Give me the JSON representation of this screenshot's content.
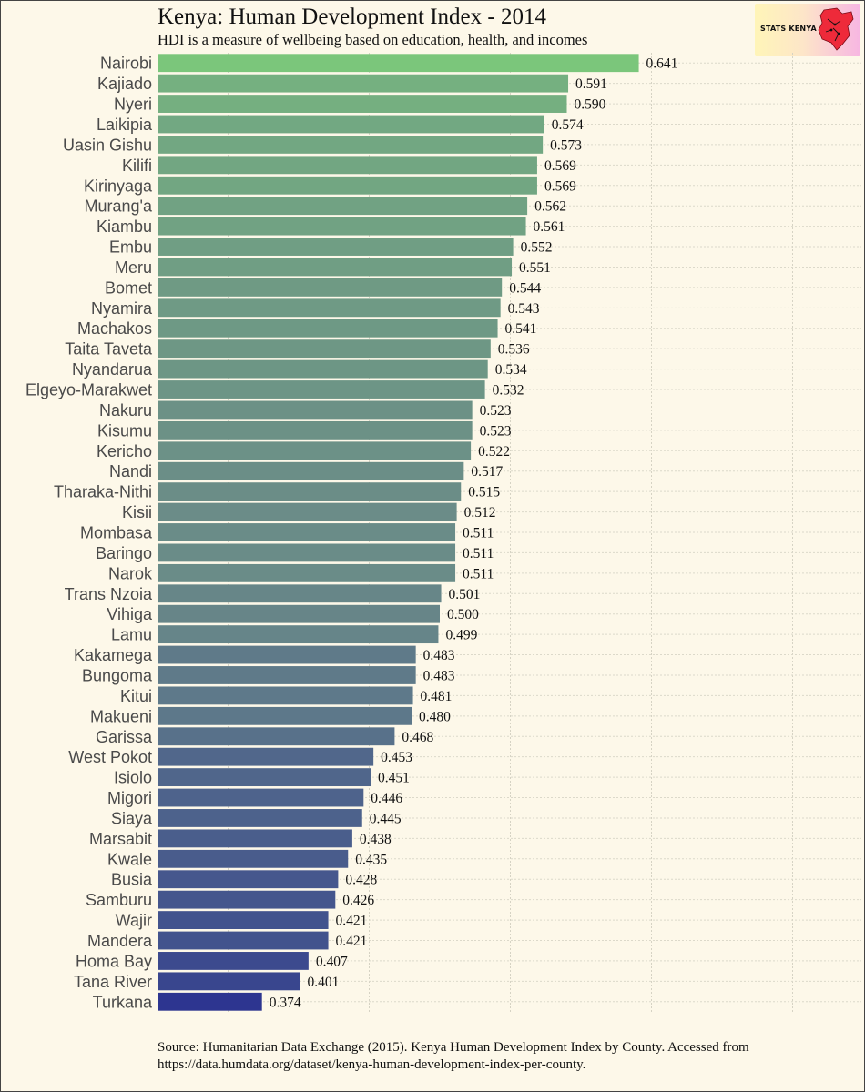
{
  "chart_data": {
    "type": "bar",
    "orientation": "horizontal",
    "title": "Kenya: Human Development Index - 2014",
    "subtitle": "HDI is a measure of wellbeing based on education, health, and incomes",
    "xlabel": "",
    "ylabel": "",
    "xlim": [
      0,
      0.75
    ],
    "grid": true,
    "colors": {
      "high": "#7bc67b",
      "mid": "#6a8a88",
      "low": "#2d3590"
    },
    "categories": [
      "Nairobi",
      "Kajiado",
      "Nyeri",
      "Laikipia",
      "Uasin Gishu",
      "Kilifi",
      "Kirinyaga",
      "Murang'a",
      "Kiambu",
      "Embu",
      "Meru",
      "Bomet",
      "Nyamira",
      "Machakos",
      "Taita Taveta",
      "Nyandarua",
      "Elgeyo-Marakwet",
      "Nakuru",
      "Kisumu",
      "Kericho",
      "Nandi",
      "Tharaka-Nithi",
      "Kisii",
      "Mombasa",
      "Baringo",
      "Narok",
      "Trans Nzoia",
      "Vihiga",
      "Lamu",
      "Kakamega",
      "Bungoma",
      "Kitui",
      "Makueni",
      "Garissa",
      "West Pokot",
      "Isiolo",
      "Migori",
      "Siaya",
      "Marsabit",
      "Kwale",
      "Busia",
      "Samburu",
      "Wajir",
      "Mandera",
      "Homa Bay",
      "Tana River",
      "Turkana"
    ],
    "values": [
      0.641,
      0.591,
      0.59,
      0.574,
      0.573,
      0.569,
      0.569,
      0.562,
      0.561,
      0.552,
      0.551,
      0.544,
      0.543,
      0.541,
      0.536,
      0.534,
      0.532,
      0.523,
      0.523,
      0.522,
      0.517,
      0.515,
      0.512,
      0.511,
      0.511,
      0.511,
      0.501,
      0.5,
      0.499,
      0.483,
      0.483,
      0.481,
      0.48,
      0.468,
      0.453,
      0.451,
      0.446,
      0.445,
      0.438,
      0.435,
      0.428,
      0.426,
      0.421,
      0.421,
      0.407,
      0.401,
      0.374
    ],
    "value_labels": [
      "0.641",
      "0.591",
      "0.590",
      "0.574",
      "0.573",
      "0.569",
      "0.569",
      "0.562",
      "0.561",
      "0.552",
      "0.551",
      "0.544",
      "0.543",
      "0.541",
      "0.536",
      "0.534",
      "0.532",
      "0.523",
      "0.523",
      "0.522",
      "0.517",
      "0.515",
      "0.512",
      "0.511",
      "0.511",
      "0.511",
      "0.501",
      "0.500",
      "0.499",
      "0.483",
      "0.483",
      "0.481",
      "0.480",
      "0.468",
      "0.453",
      "0.451",
      "0.446",
      "0.445",
      "0.438",
      "0.435",
      "0.428",
      "0.426",
      "0.421",
      "0.421",
      "0.407",
      "0.401",
      "0.374"
    ]
  },
  "logo": {
    "text": "STATS KENYA",
    "icon": "kenya-map-icon"
  },
  "source": "Source: Humanitarian Data Exchange (2015). Kenya Human Development Index by County. Accessed from https://data.humdata.org/dataset/kenya-human-development-index-per-county."
}
